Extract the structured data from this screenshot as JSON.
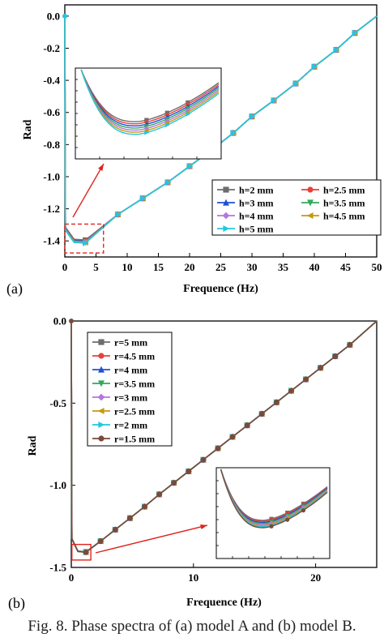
{
  "caption": "Fig. 8.   Phase spectra of (a) model A and (b) model B.",
  "chart_data": [
    {
      "type": "line",
      "panel_label": "(a)",
      "xlabel": "Frequence (Hz)",
      "ylabel": "Rad",
      "xlim": [
        0,
        50
      ],
      "ylim": [
        -1.5,
        0.07
      ],
      "xticks": [
        0,
        5,
        10,
        15,
        20,
        25,
        30,
        35,
        40,
        45,
        50
      ],
      "yticks": [
        0.0,
        -0.2,
        -0.4,
        -0.6,
        -0.8,
        -1.0,
        -1.2,
        -1.4
      ],
      "grid": false,
      "legend_position": "bottom-right",
      "x": [
        0,
        3.3,
        8.5,
        12.5,
        16.5,
        20,
        23.5,
        27,
        30,
        33.5,
        37,
        40,
        43.5,
        46.5,
        50
      ],
      "series": [
        {
          "name": "h=2 mm",
          "color": "#6d6d6d",
          "marker": "square",
          "values": [
            0,
            -1.395,
            -1.235,
            -1.135,
            -1.035,
            -0.935,
            -0.835,
            -0.728,
            -0.625,
            -0.525,
            -0.42,
            -0.315,
            -0.21,
            -0.105,
            0
          ]
        },
        {
          "name": "h=2.5 mm",
          "color": "#e8413c",
          "marker": "circle",
          "values": [
            0,
            -1.398,
            -1.235,
            -1.135,
            -1.035,
            -0.935,
            -0.835,
            -0.728,
            -0.625,
            -0.525,
            -0.42,
            -0.315,
            -0.21,
            -0.105,
            0
          ]
        },
        {
          "name": "h=3 mm",
          "color": "#1f4fd6",
          "marker": "triangle-up",
          "values": [
            0,
            -1.402,
            -1.235,
            -1.135,
            -1.035,
            -0.935,
            -0.835,
            -0.728,
            -0.625,
            -0.525,
            -0.42,
            -0.315,
            -0.21,
            -0.105,
            0
          ]
        },
        {
          "name": "h=3.5 mm",
          "color": "#2eaa5c",
          "marker": "triangle-down",
          "values": [
            0,
            -1.405,
            -1.235,
            -1.135,
            -1.035,
            -0.935,
            -0.835,
            -0.728,
            -0.625,
            -0.525,
            -0.42,
            -0.315,
            -0.21,
            -0.105,
            0
          ]
        },
        {
          "name": "h=4 mm",
          "color": "#b377e0",
          "marker": "diamond",
          "values": [
            0,
            -1.408,
            -1.235,
            -1.135,
            -1.035,
            -0.935,
            -0.835,
            -0.728,
            -0.625,
            -0.525,
            -0.42,
            -0.315,
            -0.21,
            -0.105,
            0
          ]
        },
        {
          "name": "h=4.5 mm",
          "color": "#c59a10",
          "marker": "triangle-left",
          "values": [
            0,
            -1.411,
            -1.235,
            -1.135,
            -1.035,
            -0.935,
            -0.835,
            -0.728,
            -0.625,
            -0.525,
            -0.42,
            -0.315,
            -0.21,
            -0.105,
            0
          ]
        },
        {
          "name": "h=5 mm",
          "color": "#22c6e0",
          "marker": "triangle-right",
          "values": [
            0,
            -1.414,
            -1.235,
            -1.135,
            -1.035,
            -0.935,
            -0.835,
            -0.728,
            -0.625,
            -0.525,
            -0.42,
            -0.315,
            -0.21,
            -0.105,
            0
          ]
        }
      ],
      "inset": {
        "xlim": [
          0,
          6
        ],
        "ylim": [
          -1.43,
          -1.28
        ],
        "note": "zoom of dashed box"
      }
    },
    {
      "type": "line",
      "panel_label": "(b)",
      "xlabel": "Frequence (Hz)",
      "ylabel": "Rad",
      "xlim": [
        0,
        25
      ],
      "ylim": [
        -1.5,
        0.0
      ],
      "xticks": [
        0,
        10,
        20
      ],
      "yticks": [
        0.0,
        -0.5,
        -1.0,
        -1.5
      ],
      "grid": false,
      "legend_position": "top-left",
      "x": [
        0,
        1.2,
        2.4,
        3.6,
        4.8,
        6.0,
        7.2,
        8.4,
        9.6,
        10.8,
        12.0,
        13.2,
        14.4,
        15.6,
        16.8,
        18.0,
        19.2,
        20.4,
        21.6,
        22.8,
        25
      ],
      "series": [
        {
          "name": "r=5 mm",
          "color": "#6d6d6d",
          "marker": "square",
          "values": [
            0,
            -1.405,
            -1.34,
            -1.27,
            -1.2,
            -1.13,
            -1.055,
            -0.985,
            -0.915,
            -0.845,
            -0.775,
            -0.705,
            -0.635,
            -0.565,
            -0.495,
            -0.425,
            -0.355,
            -0.285,
            -0.215,
            -0.145,
            0
          ]
        },
        {
          "name": "r=4.5 mm",
          "color": "#e8413c",
          "marker": "circle",
          "values": [
            0,
            -1.405,
            -1.34,
            -1.27,
            -1.2,
            -1.13,
            -1.055,
            -0.985,
            -0.915,
            -0.845,
            -0.775,
            -0.705,
            -0.635,
            -0.565,
            -0.495,
            -0.425,
            -0.355,
            -0.285,
            -0.215,
            -0.145,
            0
          ]
        },
        {
          "name": "r=4 mm",
          "color": "#1f4fd6",
          "marker": "triangle-up",
          "values": [
            0,
            -1.406,
            -1.34,
            -1.27,
            -1.2,
            -1.13,
            -1.055,
            -0.985,
            -0.915,
            -0.845,
            -0.775,
            -0.705,
            -0.635,
            -0.565,
            -0.495,
            -0.425,
            -0.355,
            -0.285,
            -0.215,
            -0.145,
            0
          ]
        },
        {
          "name": "r=3.5 mm",
          "color": "#2eaa5c",
          "marker": "triangle-down",
          "values": [
            0,
            -1.406,
            -1.34,
            -1.27,
            -1.2,
            -1.13,
            -1.055,
            -0.985,
            -0.915,
            -0.845,
            -0.775,
            -0.705,
            -0.635,
            -0.565,
            -0.495,
            -0.425,
            -0.355,
            -0.285,
            -0.215,
            -0.145,
            0
          ]
        },
        {
          "name": "r=3 mm",
          "color": "#b377e0",
          "marker": "diamond",
          "values": [
            0,
            -1.407,
            -1.34,
            -1.27,
            -1.2,
            -1.13,
            -1.055,
            -0.985,
            -0.915,
            -0.845,
            -0.775,
            -0.705,
            -0.635,
            -0.565,
            -0.495,
            -0.425,
            -0.355,
            -0.285,
            -0.215,
            -0.145,
            0
          ]
        },
        {
          "name": "r=2.5 mm",
          "color": "#c59a10",
          "marker": "triangle-left",
          "values": [
            0,
            -1.407,
            -1.34,
            -1.27,
            -1.2,
            -1.13,
            -1.055,
            -0.985,
            -0.915,
            -0.845,
            -0.775,
            -0.705,
            -0.635,
            -0.565,
            -0.495,
            -0.425,
            -0.355,
            -0.285,
            -0.215,
            -0.145,
            0
          ]
        },
        {
          "name": "r=2 mm",
          "color": "#22c6e0",
          "marker": "triangle-right",
          "values": [
            0,
            -1.408,
            -1.34,
            -1.27,
            -1.2,
            -1.13,
            -1.055,
            -0.985,
            -0.915,
            -0.845,
            -0.775,
            -0.705,
            -0.635,
            -0.565,
            -0.495,
            -0.425,
            -0.355,
            -0.285,
            -0.215,
            -0.145,
            0
          ]
        },
        {
          "name": "r=1.5 mm",
          "color": "#7a4a3a",
          "marker": "circle",
          "values": [
            0,
            -1.408,
            -1.34,
            -1.27,
            -1.2,
            -1.13,
            -1.055,
            -0.985,
            -0.915,
            -0.845,
            -0.775,
            -0.705,
            -0.635,
            -0.565,
            -0.495,
            -0.425,
            -0.355,
            -0.285,
            -0.215,
            -0.145,
            0
          ]
        }
      ],
      "inset": {
        "xlim": [
          0,
          1.6
        ],
        "ylim": [
          -1.44,
          -1.3
        ],
        "note": "zoom of red box"
      }
    }
  ]
}
